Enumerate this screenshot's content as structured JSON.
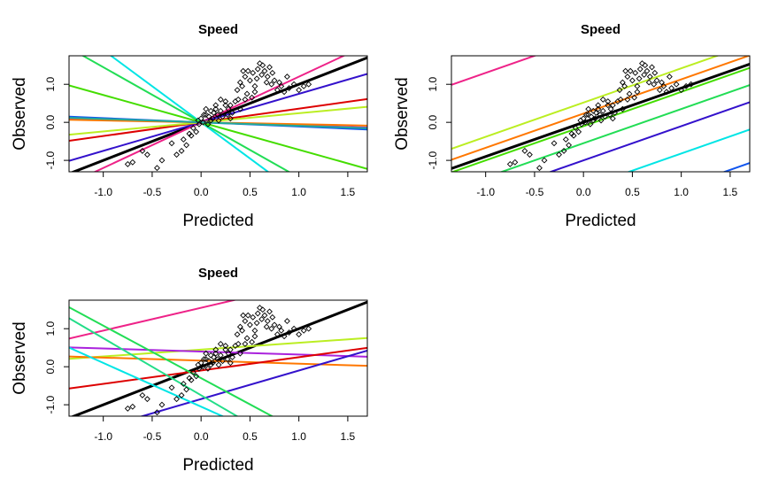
{
  "chart_data": [
    {
      "type": "scatter",
      "title": "Speed",
      "xlabel": "Predicted",
      "ylabel": "Observed",
      "xlim": [
        -1.35,
        1.7
      ],
      "ylim": [
        -1.3,
        1.75
      ],
      "xticks": [
        "-1.0",
        "-0.5",
        "0.0",
        "0.5",
        "1.0",
        "1.5"
      ],
      "yticks": [
        "-1.0",
        "0.0",
        "1.0"
      ],
      "lines": [
        {
          "color": "#000000",
          "intercept": 0.0,
          "slope": 1.0,
          "width": 3
        },
        {
          "color": "#00e5e5",
          "intercept": 0.0,
          "slope": -1.9
        },
        {
          "color": "#22dd55",
          "intercept": 0.0,
          "slope": -1.45
        },
        {
          "color": "#44dd00",
          "intercept": 0.0,
          "slope": -0.72
        },
        {
          "color": "#ee2288",
          "intercept": 0.0,
          "slope": 1.2
        },
        {
          "color": "#3311cc",
          "intercept": 0.0,
          "slope": 0.75
        },
        {
          "color": "#dd0000",
          "intercept": 0.0,
          "slope": 0.36
        },
        {
          "color": "#bbee22",
          "intercept": 0.0,
          "slope": 0.24
        },
        {
          "color": "#aa22dd",
          "intercept": 0.0,
          "slope": -0.08
        },
        {
          "color": "#ff7700",
          "intercept": 0.0,
          "slope": -0.05
        },
        {
          "color": "#1155ee",
          "intercept": 0.0,
          "slope": -0.11
        },
        {
          "color": "#22aa99",
          "intercept": 0.0,
          "slope": -0.09
        }
      ]
    },
    {
      "type": "scatter",
      "title": "Speed",
      "xlabel": "Predicted",
      "ylabel": "Observed",
      "xlim": [
        -1.35,
        1.7
      ],
      "ylim": [
        -1.3,
        1.75
      ],
      "xticks": [
        "-1.0",
        "-0.5",
        "0.0",
        "0.5",
        "1.0",
        "1.5"
      ],
      "yticks": [
        "-1.0",
        "0.0",
        "1.0"
      ],
      "lines": [
        {
          "color": "#ee2288",
          "intercept": 2.2,
          "slope": 0.9
        },
        {
          "color": "#bbee22",
          "intercept": 0.52,
          "slope": 0.9
        },
        {
          "color": "#ff7700",
          "intercept": 0.23,
          "slope": 0.9
        },
        {
          "color": "#000000",
          "intercept": 0.0,
          "slope": 0.9,
          "width": 3
        },
        {
          "color": "#44dd00",
          "intercept": -0.1,
          "slope": 0.9
        },
        {
          "color": "#22dd55",
          "intercept": -0.55,
          "slope": 0.9
        },
        {
          "color": "#3311cc",
          "intercept": -1.0,
          "slope": 0.9
        },
        {
          "color": "#00e5e5",
          "intercept": -1.72,
          "slope": 0.9
        },
        {
          "color": "#1155ee",
          "intercept": -2.6,
          "slope": 0.9
        }
      ]
    },
    {
      "type": "scatter",
      "title": "Speed",
      "xlabel": "Predicted",
      "ylabel": "Observed",
      "xlim": [
        -1.35,
        1.7
      ],
      "ylim": [
        -1.3,
        1.75
      ],
      "xticks": [
        "-1.0",
        "-0.5",
        "0.0",
        "0.5",
        "1.0",
        "1.5"
      ],
      "yticks": [
        "-1.0",
        "0.0",
        "1.0"
      ],
      "lines": [
        {
          "color": "#000000",
          "intercept": 0.0,
          "slope": 1.0,
          "width": 3
        },
        {
          "color": "#ee2288",
          "intercept": 1.55,
          "slope": 0.6
        },
        {
          "color": "#bbee22",
          "intercept": 0.45,
          "slope": 0.18
        },
        {
          "color": "#aa22dd",
          "intercept": 0.4,
          "slope": -0.08
        },
        {
          "color": "#ff7700",
          "intercept": 0.16,
          "slope": -0.08
        },
        {
          "color": "#dd0000",
          "intercept": -0.1,
          "slope": 0.35
        },
        {
          "color": "#3311cc",
          "intercept": -0.85,
          "slope": 0.75
        },
        {
          "color": "#22dd55",
          "intercept": -0.3,
          "slope": -1.38
        },
        {
          "color": "#22dd88",
          "intercept": -0.75,
          "slope": -1.5
        },
        {
          "color": "#00e5e5",
          "intercept": -1.05,
          "slope": -1.15
        }
      ]
    }
  ],
  "points": [
    [
      -0.75,
      -1.1
    ],
    [
      -0.7,
      -1.05
    ],
    [
      -0.6,
      -0.75
    ],
    [
      -0.55,
      -0.85
    ],
    [
      -0.45,
      -1.2
    ],
    [
      -0.4,
      -1.0
    ],
    [
      -0.3,
      -0.55
    ],
    [
      -0.25,
      -0.85
    ],
    [
      -0.2,
      -0.75
    ],
    [
      -0.15,
      -0.6
    ],
    [
      -0.1,
      -0.35
    ],
    [
      -0.08,
      -0.15
    ],
    [
      -0.05,
      -0.25
    ],
    [
      -0.03,
      0.05
    ],
    [
      -0.02,
      -0.05
    ],
    [
      0.0,
      0.1
    ],
    [
      0.02,
      0.0
    ],
    [
      0.03,
      0.2
    ],
    [
      0.05,
      0.35
    ],
    [
      0.07,
      -0.05
    ],
    [
      0.08,
      0.15
    ],
    [
      0.1,
      0.3
    ],
    [
      0.12,
      0.1
    ],
    [
      0.13,
      0.25
    ],
    [
      0.15,
      0.35
    ],
    [
      0.17,
      0.2
    ],
    [
      0.18,
      0.05
    ],
    [
      0.2,
      0.3
    ],
    [
      0.22,
      0.15
    ],
    [
      0.25,
      0.45
    ],
    [
      0.27,
      0.2
    ],
    [
      0.28,
      0.35
    ],
    [
      0.3,
      0.1
    ],
    [
      0.32,
      0.25
    ],
    [
      0.35,
      0.55
    ],
    [
      0.37,
      0.85
    ],
    [
      0.38,
      0.6
    ],
    [
      0.4,
      1.05
    ],
    [
      0.42,
      0.95
    ],
    [
      0.43,
      1.35
    ],
    [
      0.45,
      1.2
    ],
    [
      0.47,
      0.75
    ],
    [
      0.48,
      1.35
    ],
    [
      0.5,
      1.1
    ],
    [
      0.52,
      0.65
    ],
    [
      0.53,
      1.3
    ],
    [
      0.55,
      0.95
    ],
    [
      0.57,
      1.15
    ],
    [
      0.58,
      1.4
    ],
    [
      0.6,
      1.55
    ],
    [
      0.62,
      1.25
    ],
    [
      0.63,
      1.5
    ],
    [
      0.65,
      1.35
    ],
    [
      0.67,
      1.05
    ],
    [
      0.68,
      1.2
    ],
    [
      0.7,
      1.45
    ],
    [
      0.72,
      1.0
    ],
    [
      0.73,
      1.3
    ],
    [
      0.75,
      1.1
    ],
    [
      0.78,
      0.85
    ],
    [
      0.8,
      1.05
    ],
    [
      0.82,
      0.95
    ],
    [
      0.85,
      0.8
    ],
    [
      0.88,
      1.2
    ],
    [
      0.9,
      0.9
    ],
    [
      0.95,
      1.0
    ],
    [
      1.0,
      0.85
    ],
    [
      1.05,
      0.95
    ],
    [
      1.1,
      1.0
    ],
    [
      0.15,
      0.45
    ],
    [
      0.2,
      0.6
    ],
    [
      0.25,
      0.55
    ],
    [
      0.05,
      0.2
    ],
    [
      -0.12,
      -0.3
    ],
    [
      -0.18,
      -0.45
    ],
    [
      0.1,
      0.05
    ],
    [
      0.3,
      0.45
    ],
    [
      0.45,
      0.6
    ],
    [
      0.55,
      0.8
    ],
    [
      0.4,
      0.35
    ]
  ]
}
